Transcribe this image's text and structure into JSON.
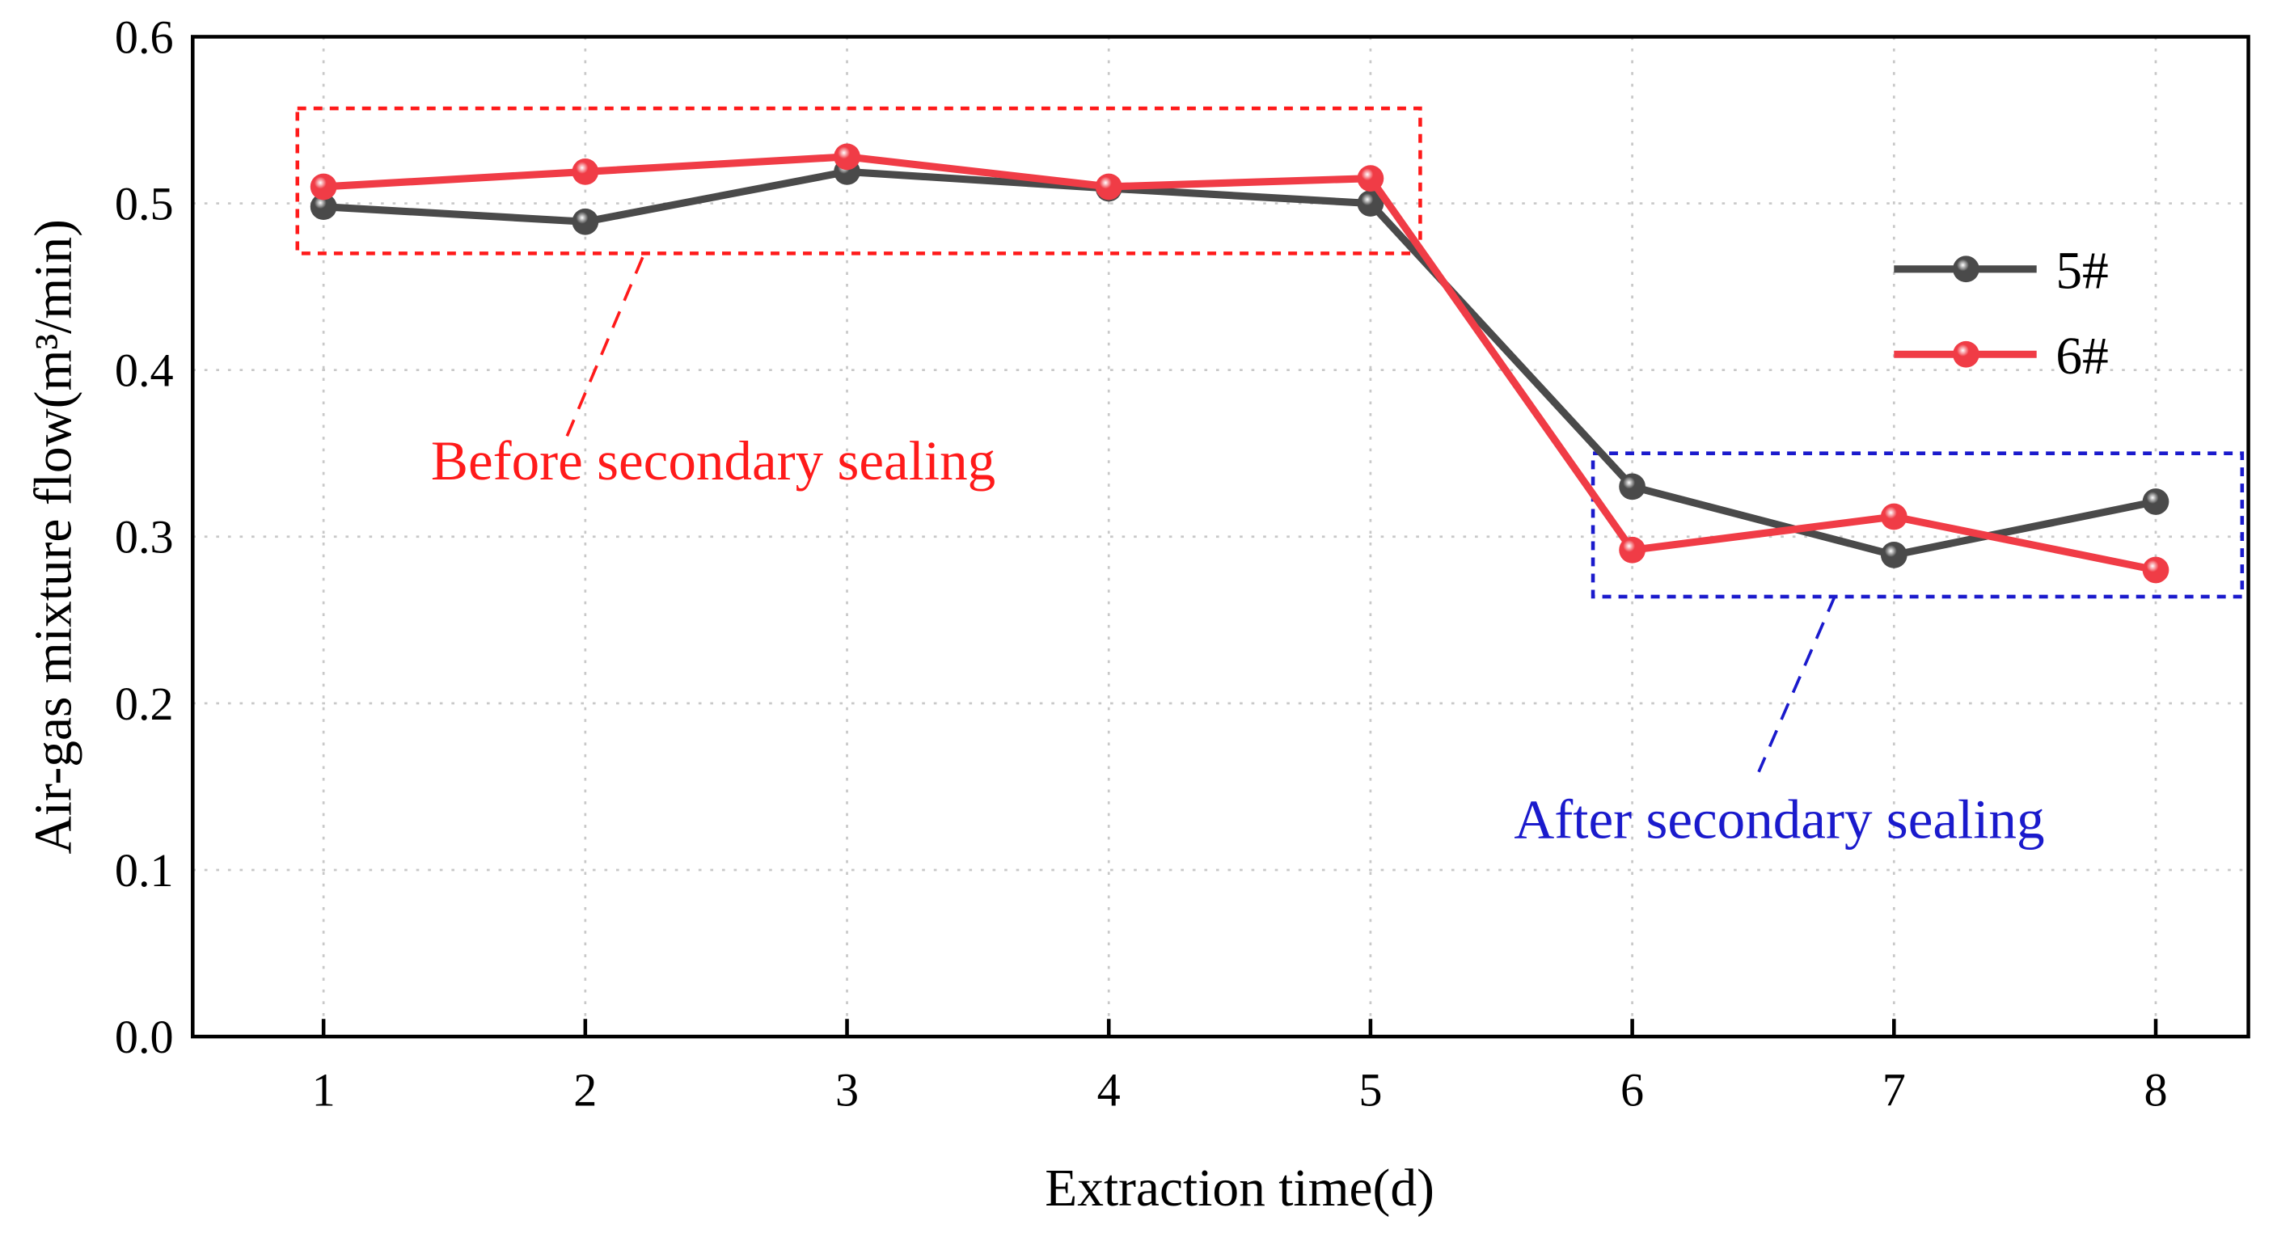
{
  "chart_data": {
    "type": "line",
    "title": "",
    "xlabel": "Extraction time(d)",
    "ylabel": "Air-gas mixture flow(m³/min)",
    "x": [
      1,
      2,
      3,
      4,
      5,
      6,
      7,
      8
    ],
    "xticks": [
      "1",
      "2",
      "3",
      "4",
      "5",
      "6",
      "7",
      "8"
    ],
    "yticks": [
      "0.0",
      "0.1",
      "0.2",
      "0.3",
      "0.4",
      "0.5",
      "0.6"
    ],
    "xlim": [
      0.5,
      8.35
    ],
    "ylim": [
      0,
      0.6
    ],
    "grid": true,
    "legend_position": "top-right",
    "series": [
      {
        "name": "5#",
        "color": "#4a4a4a",
        "values": [
          0.498,
          0.489,
          0.519,
          0.509,
          0.5,
          0.33,
          0.289,
          0.321
        ]
      },
      {
        "name": "6#",
        "color": "#f03c46",
        "values": [
          0.51,
          0.519,
          0.528,
          0.51,
          0.515,
          0.292,
          0.312,
          0.28
        ]
      }
    ],
    "annotations": [
      {
        "text": "Before secondary sealing",
        "color": "#ff1a1a",
        "box_x": [
          0.9,
          5.19
        ],
        "box_y": [
          0.47,
          0.557
        ]
      },
      {
        "text": "After secondary sealing",
        "color": "#1a1acc",
        "box_x": [
          5.85,
          8.33
        ],
        "box_y": [
          0.264,
          0.35
        ]
      }
    ]
  }
}
